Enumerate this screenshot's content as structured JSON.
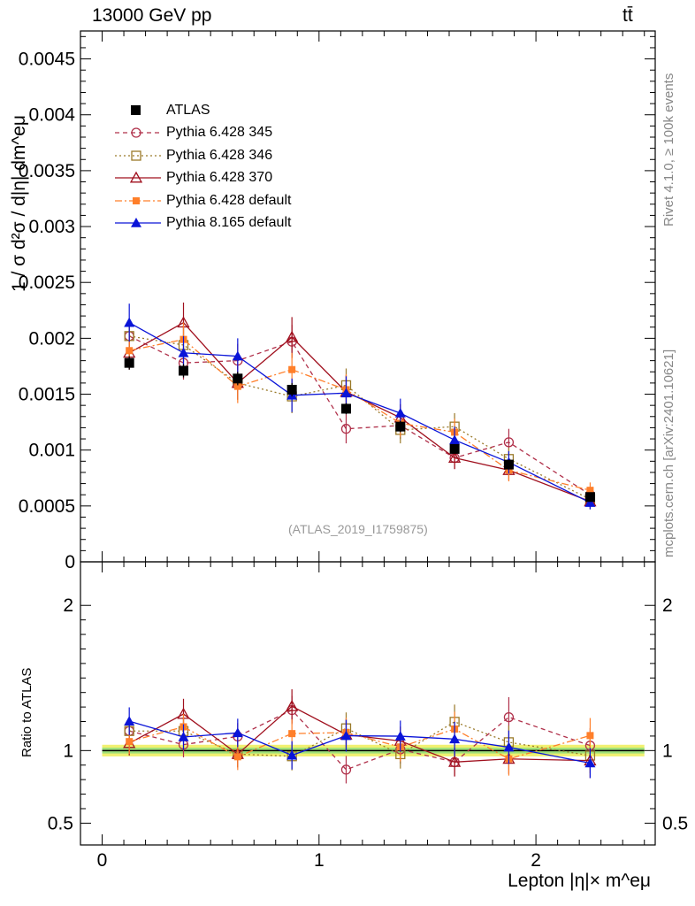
{
  "header": {
    "left": "13000 GeV pp",
    "right": "tt̄"
  },
  "side": {
    "rivet": "Rivet 4.1.0, ≥ 100k events",
    "mcplots": "mcplots.cern.ch [arXiv:2401.10621]"
  },
  "watermark": "(ATLAS_2019_I1759875)",
  "chart_data": {
    "type": "scatter",
    "title": "13000 GeV pp",
    "ylabel": "1 / σ d²σ / d|η| dm^eμ",
    "ratio_ylabel": "Ratio to ATLAS",
    "xlabel": "Lepton |η|× m^eμ",
    "xlim": [
      -0.1,
      2.55
    ],
    "ylim": [
      0,
      0.00475
    ],
    "ratio_ylim": [
      0.35,
      2.3
    ],
    "x_ticks": [
      "0",
      "1",
      "2"
    ],
    "y_ticks": [
      "0",
      "0.0005",
      "0.001",
      "0.0015",
      "0.002",
      "0.0025",
      "0.003",
      "0.0035",
      "0.004",
      "0.0045"
    ],
    "ratio_ticks": [
      "0.5",
      "1",
      "2"
    ],
    "x": [
      0.125,
      0.375,
      0.625,
      0.875,
      1.125,
      1.375,
      1.625,
      1.875,
      2.25
    ],
    "reference": {
      "name": "ATLAS",
      "values": [
        0.00178,
        0.00171,
        0.00164,
        0.00154,
        0.00137,
        0.00121,
        0.00101,
        0.00087,
        0.00058
      ],
      "errors": [
        6e-05,
        6e-05,
        6e-05,
        6e-05,
        5e-05,
        5e-05,
        4e-05,
        4e-05,
        3e-05
      ]
    },
    "series": [
      {
        "name": "Pythia 6.428 345",
        "color": "#b0304a",
        "dash": "5,4",
        "marker": "circle-open",
        "values": [
          0.00202,
          0.00178,
          0.0018,
          0.00197,
          0.00119,
          0.00122,
          0.00093,
          0.00107,
          0.0006
        ],
        "errors": [
          0.00015,
          0.00015,
          0.00015,
          0.00015,
          0.00013,
          0.00012,
          0.0001,
          0.00012,
          7e-05
        ]
      },
      {
        "name": "Pythia 6.428 346",
        "color": "#9a7a2a",
        "dash": "2,3",
        "marker": "square-open",
        "values": [
          0.00202,
          0.00194,
          0.0016,
          0.00148,
          0.00158,
          0.00118,
          0.00121,
          0.00092,
          0.00056
        ],
        "errors": [
          0.00015,
          0.00015,
          0.00015,
          0.00015,
          0.00015,
          0.00012,
          0.00012,
          0.0001,
          7e-05
        ]
      },
      {
        "name": "Pythia 6.428 370",
        "color": "#a0101e",
        "dash": "",
        "marker": "triangle-open",
        "values": [
          0.00187,
          0.00214,
          0.0016,
          0.00201,
          0.00152,
          0.00129,
          0.00093,
          0.00082,
          0.00054
        ],
        "errors": [
          0.00015,
          0.00018,
          0.00015,
          0.00018,
          0.00015,
          0.00012,
          0.0001,
          9e-05,
          7e-05
        ]
      },
      {
        "name": "Pythia 6.428 default",
        "color": "#ff7f2a",
        "dash": "8,3,2,3",
        "marker": "square-filled",
        "values": [
          0.00189,
          0.00199,
          0.00157,
          0.00172,
          0.00154,
          0.00124,
          0.00116,
          0.00082,
          0.00064
        ],
        "errors": [
          0.00015,
          0.00015,
          0.00015,
          0.00015,
          0.00014,
          0.00012,
          0.00012,
          0.0001,
          7e-05
        ]
      },
      {
        "name": "Pythia 8.165 default",
        "color": "#0a14d8",
        "dash": "",
        "marker": "triangle-filled",
        "values": [
          0.00214,
          0.00187,
          0.00184,
          0.00149,
          0.00151,
          0.00133,
          0.00109,
          0.00089,
          0.00053
        ],
        "errors": [
          0.00017,
          0.00015,
          0.00016,
          0.00015,
          0.00015,
          0.00013,
          0.00012,
          0.0001,
          6e-05
        ]
      }
    ]
  }
}
